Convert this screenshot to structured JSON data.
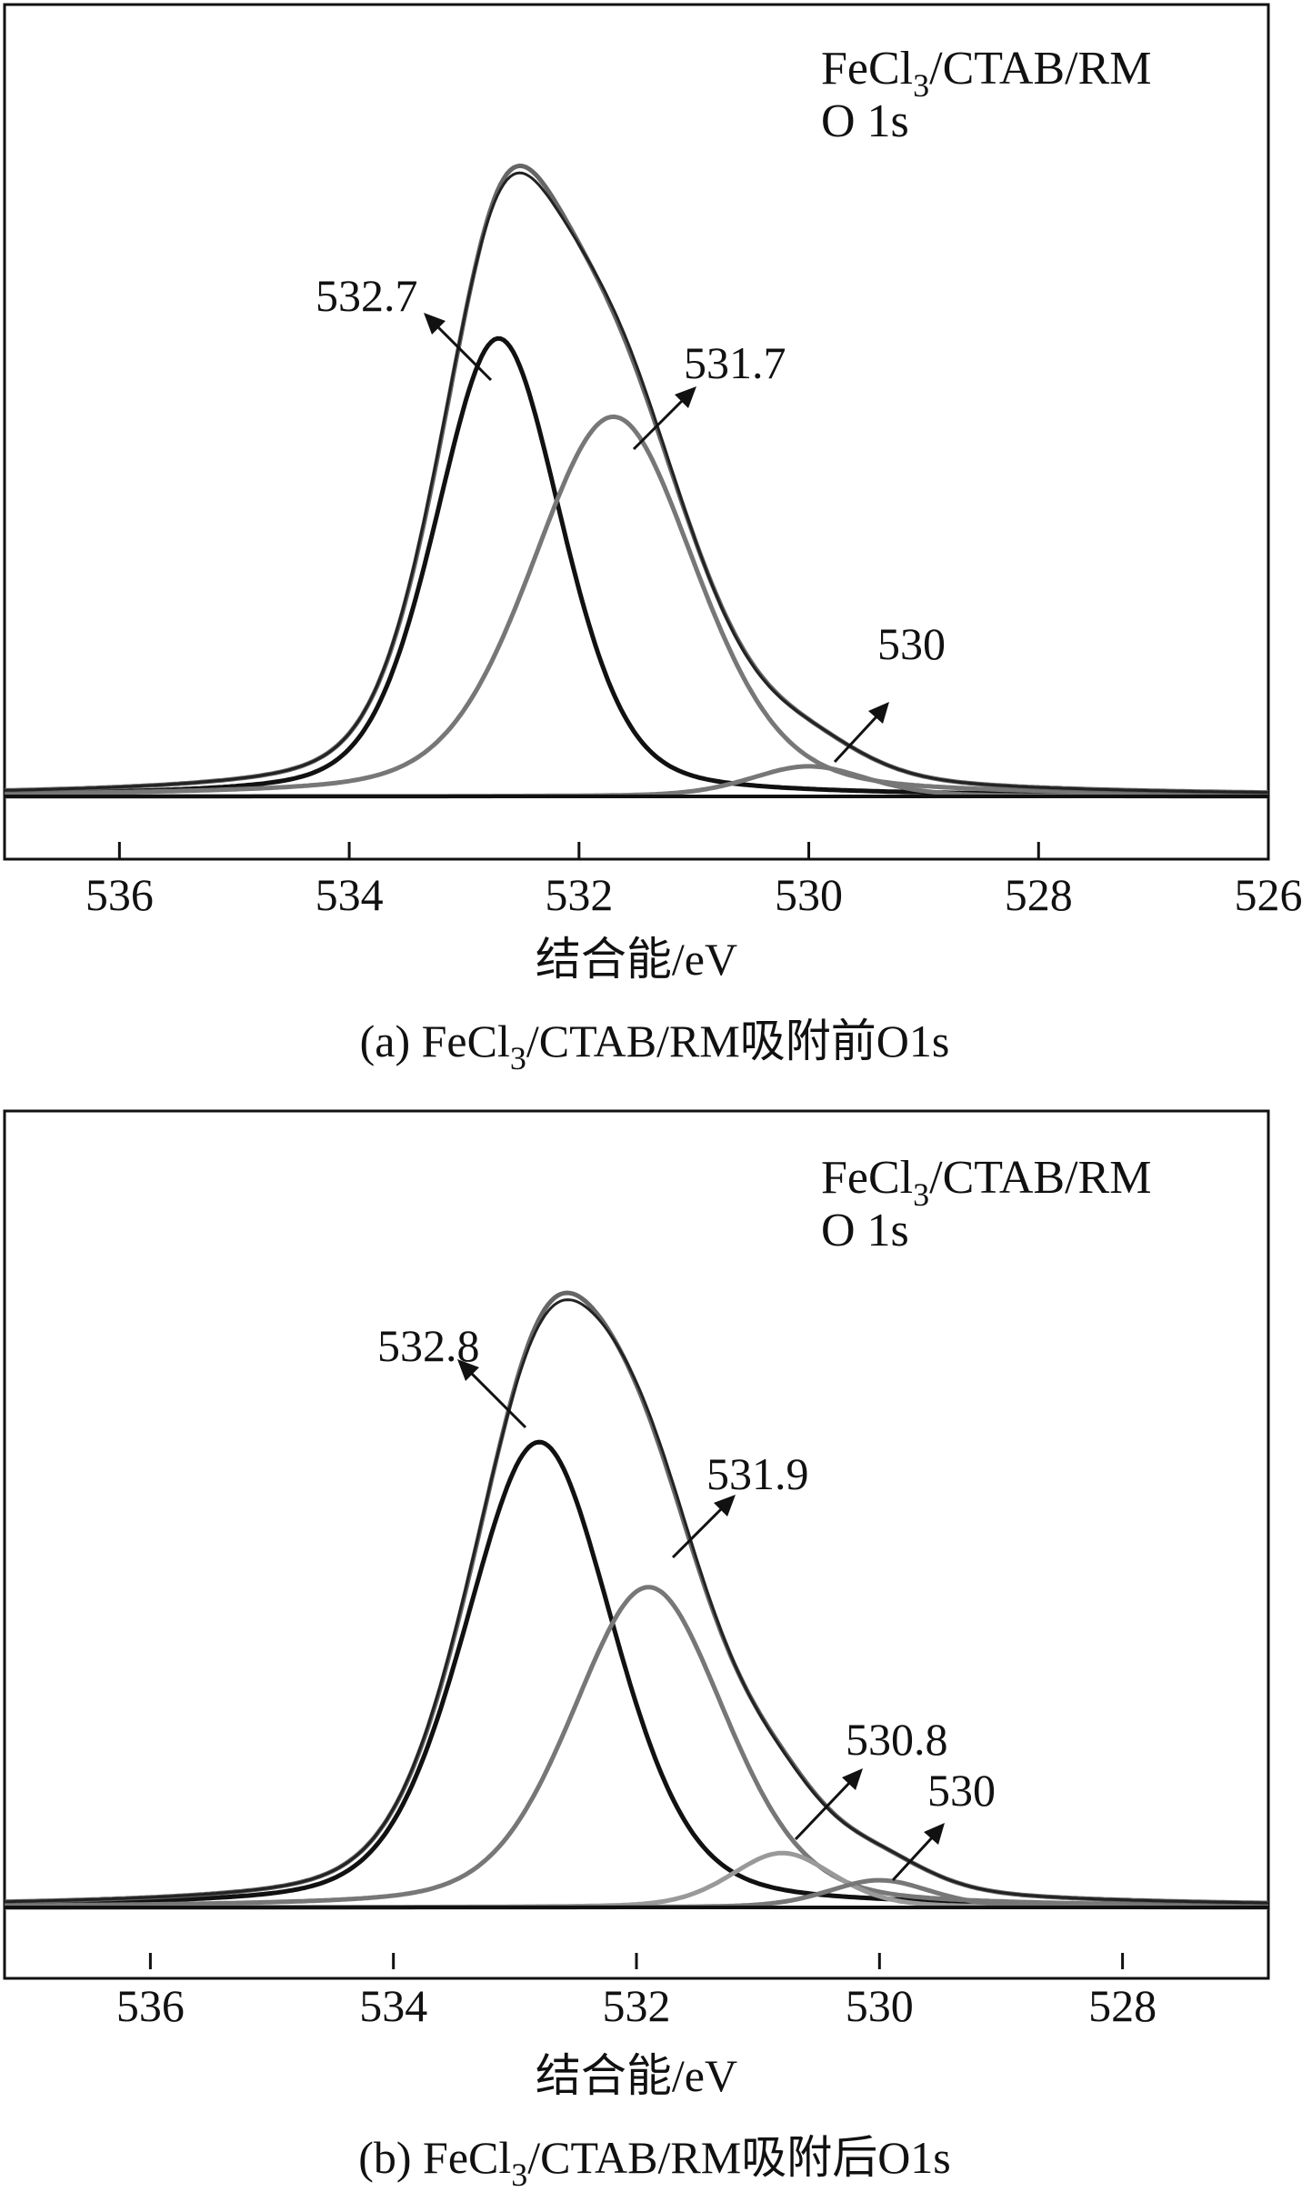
{
  "chart_data": [
    {
      "type": "line",
      "panel": "a",
      "caption": "(a) FeCl3/CTAB/RM吸附前O1s",
      "caption_parts": {
        "prefix": "(a) FeCl",
        "sub": "3",
        "suffix": "/CTAB/RM吸附前O1s"
      },
      "legend": {
        "line1_prefix": "FeCl",
        "line1_sub": "3",
        "line1_suffix": "/CTAB/RM",
        "line2": "O 1s",
        "position": "top-right"
      },
      "xlabel": "结合能/eV",
      "xlim": [
        537,
        526
      ],
      "xticks": [
        "536",
        "534",
        "532",
        "530",
        "528",
        "526"
      ],
      "xtick_values": [
        536,
        534,
        532,
        530,
        528,
        526
      ],
      "ylim": [
        0,
        1.05
      ],
      "peaks": [
        {
          "center": 532.7,
          "height": 0.76,
          "width": 1.3,
          "color": "#111111",
          "label": "532.7"
        },
        {
          "center": 531.7,
          "height": 0.63,
          "width": 1.7,
          "color": "#777777",
          "label": "531.7"
        },
        {
          "center": 530.0,
          "height": 0.05,
          "width": 1.2,
          "color": "#777777",
          "label": "530"
        }
      ],
      "envelope_colors": {
        "fitted": "#666666",
        "raw": "#222222"
      },
      "annotations": [
        "532.7",
        "531.7",
        "530"
      ]
    },
    {
      "type": "line",
      "panel": "b",
      "caption": "(b) FeCl3/CTAB/RM吸附后O1s",
      "caption_parts": {
        "prefix": "(b) FeCl",
        "sub": "3",
        "suffix": "/CTAB/RM吸附后O1s"
      },
      "legend": {
        "line1_prefix": "FeCl",
        "line1_sub": "3",
        "line1_suffix": "/CTAB/RM",
        "line2": "O 1s",
        "position": "top-right"
      },
      "xlabel": "结合能/eV",
      "xlim": [
        537.2,
        526.8
      ],
      "xticks": [
        "536",
        "534",
        "532",
        "530",
        "528"
      ],
      "xtick_values": [
        536,
        534,
        532,
        530,
        528
      ],
      "ylim": [
        0,
        1.05
      ],
      "peaks": [
        {
          "center": 532.8,
          "height": 0.77,
          "width": 1.45,
          "color": "#111111",
          "label": "532.8"
        },
        {
          "center": 531.9,
          "height": 0.53,
          "width": 1.5,
          "color": "#777777",
          "label": "531.9"
        },
        {
          "center": 530.8,
          "height": 0.09,
          "width": 1.0,
          "color": "#999999",
          "label": "530.8"
        },
        {
          "center": 530.0,
          "height": 0.045,
          "width": 1.0,
          "color": "#777777",
          "label": "530"
        }
      ],
      "envelope_colors": {
        "fitted": "#666666",
        "raw": "#222222"
      },
      "annotations": [
        "532.8",
        "531.9",
        "530.8",
        "530"
      ]
    }
  ]
}
